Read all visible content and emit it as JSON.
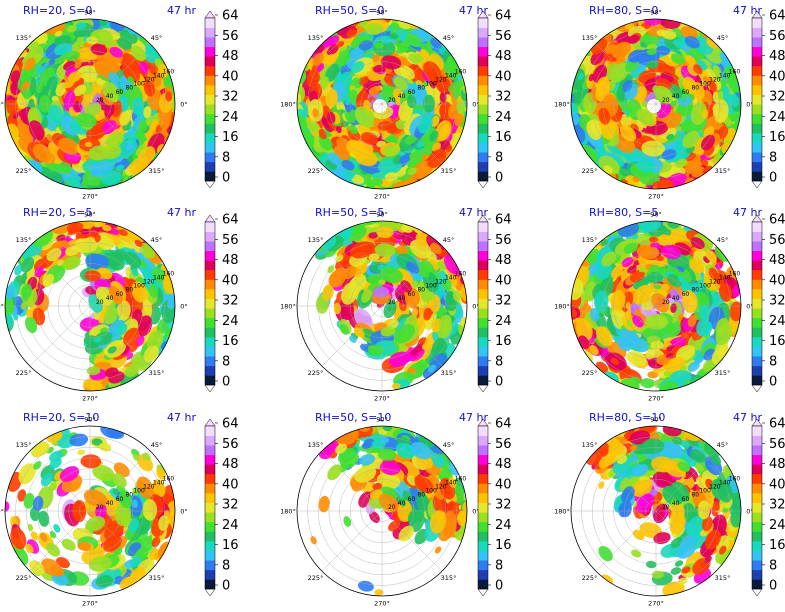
{
  "figure": {
    "colormap": [
      "#0a1a3a",
      "#1e3fb0",
      "#2f7cf0",
      "#33c3f5",
      "#16d9c0",
      "#20c060",
      "#40e030",
      "#9ae020",
      "#e6e62a",
      "#ffc400",
      "#ff8c00",
      "#ff3c00",
      "#e0005a",
      "#ff00d8",
      "#c070ff",
      "#dca8ff",
      "#f4dcff"
    ],
    "colorbar_ticks": [
      "0",
      "8",
      "16",
      "24",
      "32",
      "40",
      "48",
      "56",
      "64"
    ],
    "angle_labels": [
      "90°",
      "45°",
      "0°",
      "315°",
      "270°",
      "225°",
      "180°",
      "135°"
    ],
    "radial_labels": [
      "20",
      "40",
      "60",
      "80",
      "100",
      "120",
      "140",
      "160"
    ]
  },
  "chart_data": [
    {
      "type": "heatmap",
      "projection": "polar",
      "title": "RH=20, S=0",
      "time": "47 hr",
      "rmax": 160,
      "clim": [
        0,
        64
      ],
      "coverage": "full"
    },
    {
      "type": "heatmap",
      "projection": "polar",
      "title": "RH=50, S=0",
      "time": "47 hr",
      "rmax": 160,
      "clim": [
        0,
        64
      ],
      "coverage": "full"
    },
    {
      "type": "heatmap",
      "projection": "polar",
      "title": "RH=80, S=0",
      "time": "47 hr",
      "rmax": 160,
      "clim": [
        0,
        64
      ],
      "coverage": "full"
    },
    {
      "type": "heatmap",
      "projection": "polar",
      "title": "RH=20, S=5",
      "time": "47 hr",
      "rmax": 160,
      "clim": [
        0,
        64
      ],
      "coverage": "partial-east"
    },
    {
      "type": "heatmap",
      "projection": "polar",
      "title": "RH=50, S=5",
      "time": "47 hr",
      "rmax": 160,
      "clim": [
        0,
        64
      ],
      "coverage": "partial"
    },
    {
      "type": "heatmap",
      "projection": "polar",
      "title": "RH=80, S=5",
      "time": "47 hr",
      "rmax": 160,
      "clim": [
        0,
        64
      ],
      "coverage": "mostly-full"
    },
    {
      "type": "heatmap",
      "projection": "polar",
      "title": "RH=20, S=10",
      "time": "47 hr",
      "rmax": 160,
      "clim": [
        0,
        64
      ],
      "coverage": "sparse"
    },
    {
      "type": "heatmap",
      "projection": "polar",
      "title": "RH=50, S=10",
      "time": "47 hr",
      "rmax": 160,
      "clim": [
        0,
        64
      ],
      "coverage": "north-east"
    },
    {
      "type": "heatmap",
      "projection": "polar",
      "title": "RH=80, S=10",
      "time": "47 hr",
      "rmax": 160,
      "clim": [
        0,
        64
      ],
      "coverage": "north-east-large"
    }
  ]
}
